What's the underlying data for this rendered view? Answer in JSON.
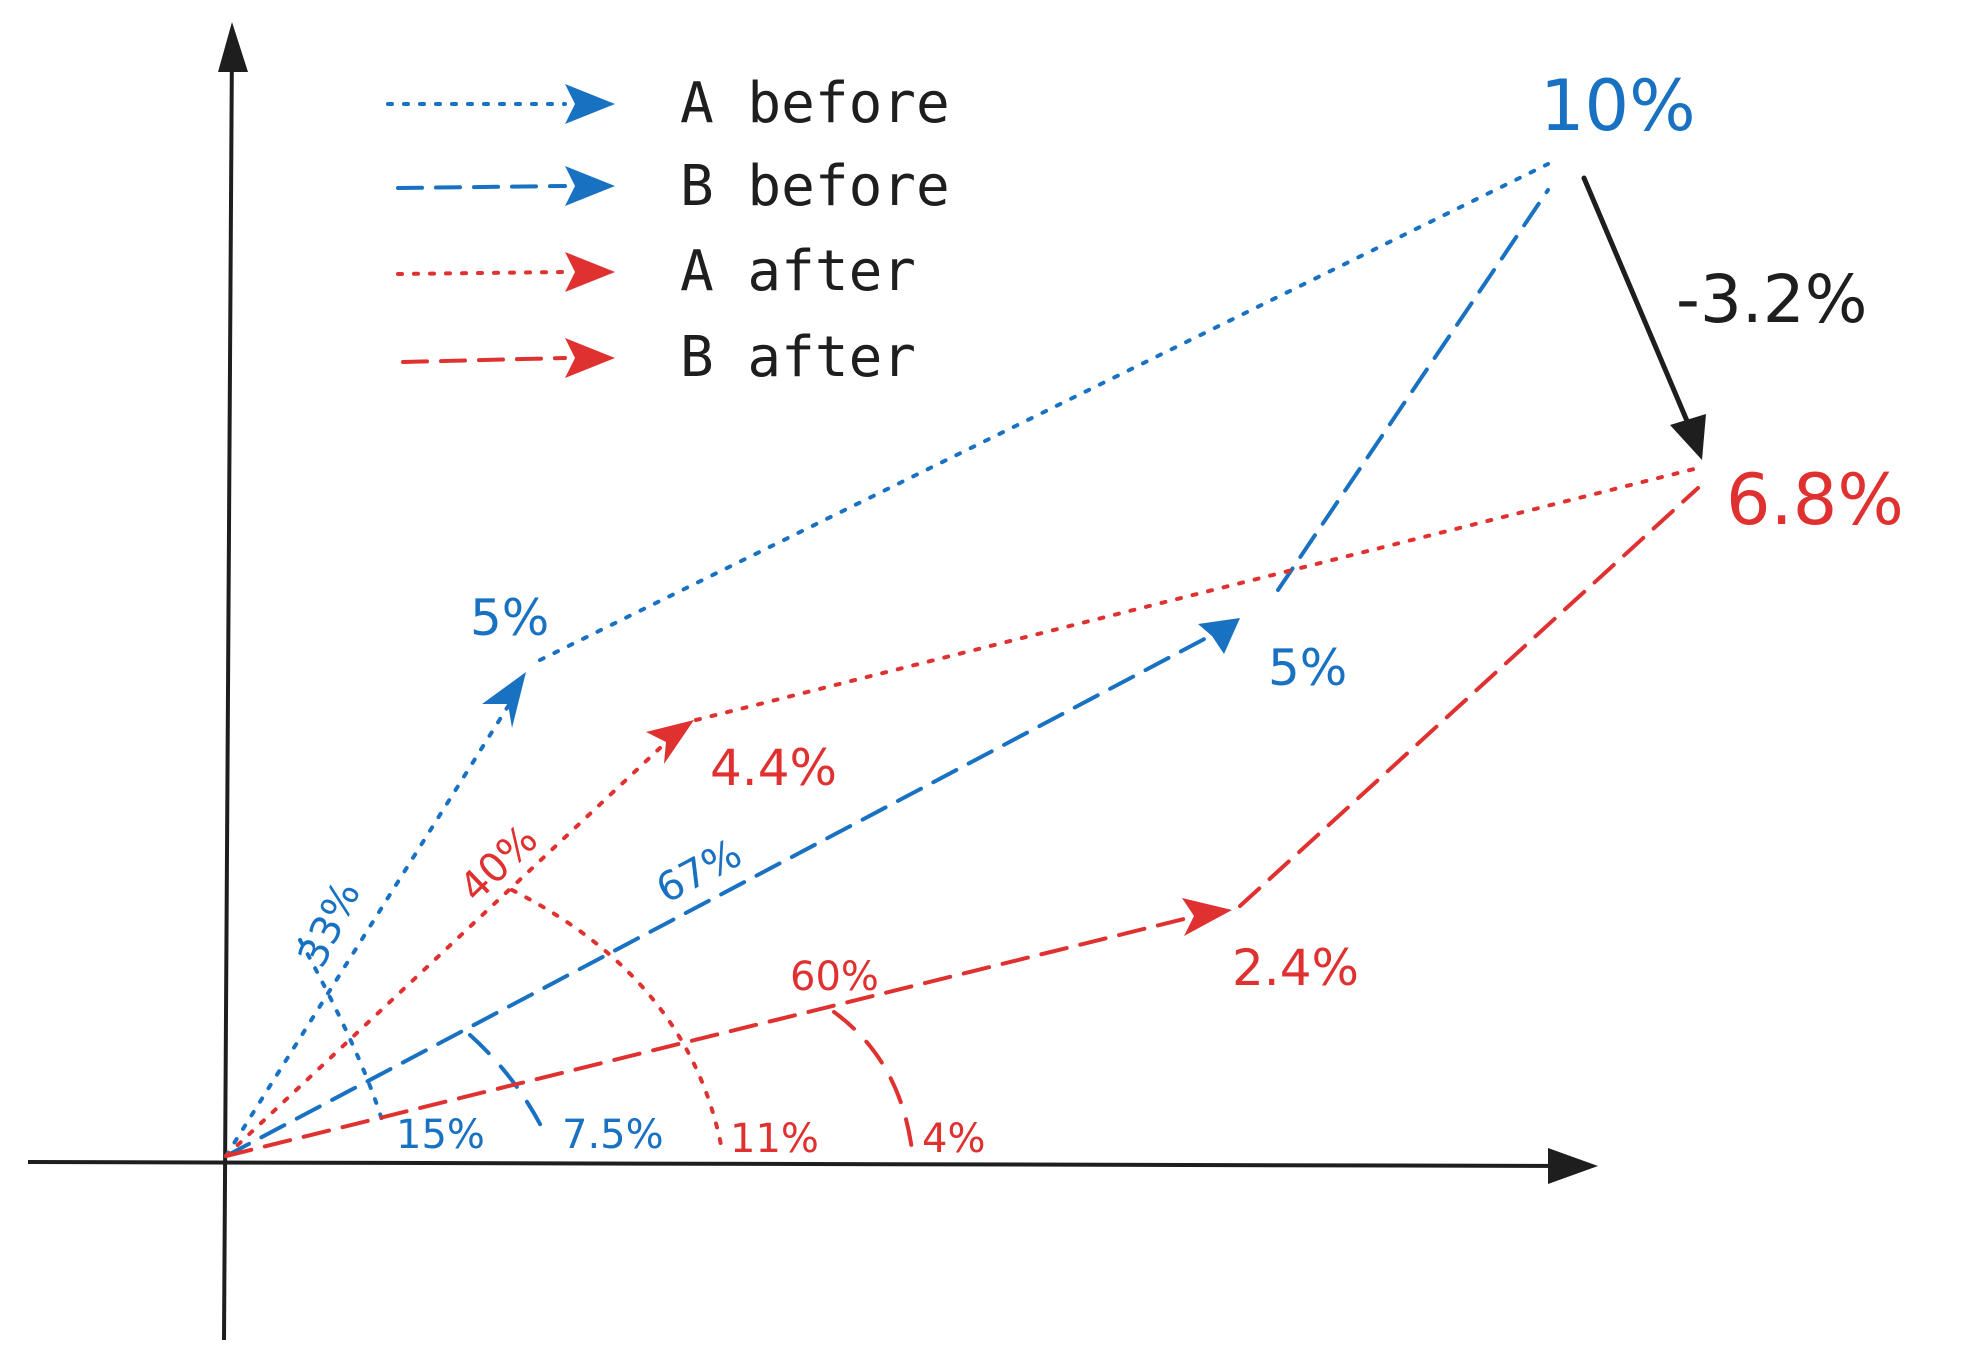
{
  "colors": {
    "blue": "#1971c2",
    "red": "#e03131",
    "ink": "#1e1e1e"
  },
  "legend": [
    {
      "label": "A before",
      "style": "dotted",
      "color": "blue"
    },
    {
      "label": "B before",
      "style": "dashed",
      "color": "blue"
    },
    {
      "label": "A after",
      "style": "dotted",
      "color": "red"
    },
    {
      "label": "B after",
      "style": "dashed",
      "color": "red"
    }
  ],
  "vectors": {
    "a_before": {
      "angle_label": "33%",
      "value_label": "5%"
    },
    "b_before": {
      "angle_label": "67%",
      "value_label": "5%"
    },
    "a_after": {
      "angle_label": "40%",
      "value_label": "4.4%"
    },
    "b_after": {
      "angle_label": "60%",
      "value_label": "2.4%"
    }
  },
  "axis_labels": {
    "blue_15": "15%",
    "blue_7_5": "7.5%",
    "red_11": "11%",
    "red_4": "4%"
  },
  "totals": {
    "before": "10%",
    "after": "6.8%",
    "change": "-3.2%"
  }
}
